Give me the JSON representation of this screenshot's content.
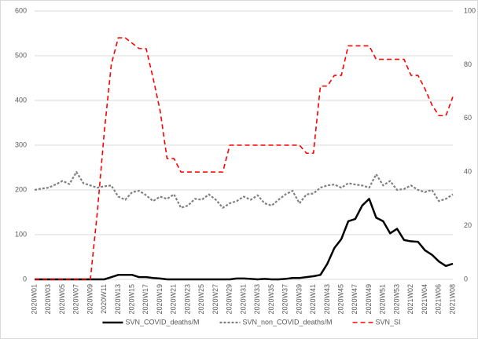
{
  "chart_data": {
    "type": "line",
    "categories": [
      "2020W01",
      null,
      "2020W03",
      null,
      "2020W05",
      null,
      "2020W07",
      null,
      "2020W09",
      null,
      "2020W11",
      null,
      "2020W13",
      null,
      "2020W15",
      null,
      "2020W17",
      null,
      "2020W19",
      null,
      "2020W21",
      null,
      "2020W23",
      null,
      "2020W25",
      null,
      "2020W27",
      null,
      "2020W29",
      null,
      "2020W31",
      null,
      "2020W33",
      null,
      "2020W35",
      null,
      "2020W37",
      null,
      "2020W39",
      null,
      "2020W41",
      null,
      "2020W43",
      null,
      "2020W45",
      null,
      "2020W47",
      null,
      "2020W49",
      null,
      "2020W51",
      null,
      "2020W53",
      null,
      "2021W02",
      null,
      "2021W04",
      null,
      "2021W06",
      null,
      "2021W08"
    ],
    "series": [
      {
        "name": "SVN_COVID_deaths/M",
        "color": "#000000",
        "line_style": "solid",
        "axis": "y",
        "values": [
          0,
          0,
          0,
          0,
          0,
          0,
          0,
          0,
          0,
          0,
          0,
          5,
          10,
          10,
          10,
          5,
          5,
          3,
          2,
          0,
          0,
          0,
          0,
          0,
          0,
          0,
          0,
          0,
          0,
          2,
          2,
          1,
          0,
          1,
          0,
          0,
          1,
          3,
          3,
          5,
          7,
          10,
          35,
          70,
          90,
          130,
          135,
          165,
          180,
          138,
          130,
          103,
          113,
          88,
          85,
          84,
          65,
          55,
          40,
          30,
          35
        ]
      },
      {
        "name": "SVN_non_COVID_deaths/M",
        "color": "#808080",
        "line_style": "dotted",
        "axis": "y",
        "values": [
          200,
          203,
          205,
          212,
          220,
          213,
          240,
          215,
          210,
          205,
          208,
          210,
          185,
          178,
          195,
          198,
          188,
          175,
          185,
          180,
          190,
          160,
          165,
          180,
          178,
          190,
          178,
          160,
          170,
          175,
          185,
          178,
          188,
          170,
          165,
          178,
          190,
          198,
          170,
          190,
          192,
          205,
          210,
          212,
          205,
          215,
          212,
          210,
          205,
          235,
          210,
          220,
          200,
          202,
          210,
          200,
          195,
          200,
          175,
          180,
          190
        ]
      },
      {
        "name": "SVN_SI",
        "color": "#ff0000",
        "line_style": "dashed",
        "axis": "y2",
        "values": [
          0,
          0,
          0,
          0,
          0,
          0,
          0,
          0,
          0,
          25,
          55,
          80,
          90,
          90,
          88,
          86,
          86,
          75,
          63,
          45,
          45,
          40,
          40,
          40,
          40,
          40,
          40,
          40,
          50,
          50,
          50,
          50,
          50,
          50,
          50,
          50,
          50,
          50,
          50,
          47,
          47,
          72,
          72,
          76,
          76,
          87,
          87,
          87,
          87,
          82,
          82,
          82,
          82,
          82,
          76,
          76,
          71,
          65,
          61,
          61,
          68
        ]
      }
    ],
    "ylim": [
      0,
      600
    ],
    "yticks": [
      0,
      100,
      200,
      300,
      400,
      500,
      600
    ],
    "y2lim": [
      0,
      100
    ],
    "y2ticks": [
      0,
      20,
      40,
      60,
      80,
      100
    ],
    "grid": true,
    "legend": "bottom"
  }
}
